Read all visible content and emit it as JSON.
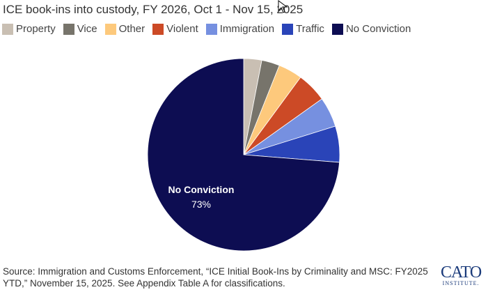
{
  "chart_data": {
    "type": "pie",
    "title": "ICE book-ins into custody, FY 2026, Oct 1 - Nov 15, 2025",
    "start_angle": "12 o'clock",
    "direction": "clockwise",
    "legend_position": "top-left",
    "categories": [
      "Property",
      "Vice",
      "Other",
      "Violent",
      "Immigration",
      "Traffic",
      "No Conviction"
    ],
    "values": [
      3,
      3,
      4,
      5,
      5,
      6,
      73
    ],
    "colors": [
      "#c9bfb3",
      "#77746b",
      "#fdc97c",
      "#cc4a26",
      "#7690e0",
      "#2a44b8",
      "#0d0d52"
    ],
    "unit": "%",
    "annotation": {
      "label": "No Conviction",
      "value": "73%"
    }
  },
  "source": "Source: Immigration and Customs Enforcement, “ICE Initial Book-Ins by Criminality and MSC: FY2025 YTD,” November 15, 2025. See Appendix Table A for classifications.",
  "logo": {
    "name": "CATO",
    "sub": "INSTITUTE"
  }
}
